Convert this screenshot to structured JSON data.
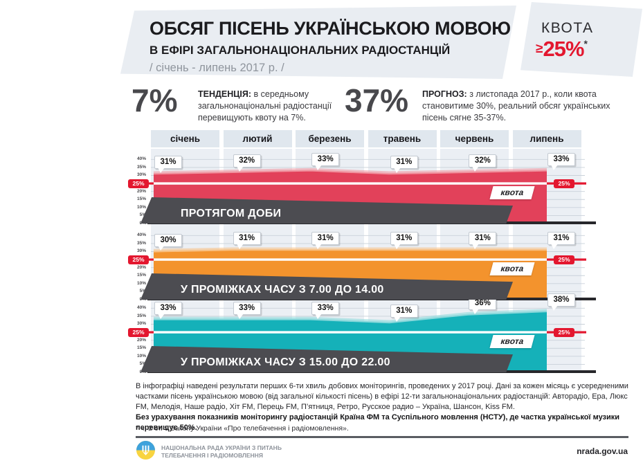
{
  "header": {
    "title": "ОБСЯГ ПІСЕНЬ УКРАЇНСЬКОЮ МОВОЮ",
    "subtitle": "В ЕФІРІ ЗАГАЛЬНОНАЦІОНАЛЬНИХ РАДІОСТАНЦІЙ",
    "period": "/ січень - липень 2017 р. /",
    "quota_label": "КВОТА",
    "quota_ge": "≥",
    "quota_value": "25%",
    "quota_asterisk": "*"
  },
  "stats": [
    {
      "value": "7%",
      "label": "ТЕНДЕНЦІЯ:",
      "text": "в середньому загальнонаціональні радіостанції перевищують квоту на 7%."
    },
    {
      "value": "37%",
      "label": "ПРОГНОЗ:",
      "text": "з листопада 2017 р., коли квота становитиме 30%, реальний обсяг українських пісень сягне 35-37%."
    }
  ],
  "chart_data": {
    "type": "area",
    "categories": [
      "січень",
      "лютий",
      "березень",
      "травень",
      "червень",
      "липень"
    ],
    "y_ticks": [
      "40%",
      "35%",
      "30%",
      "25%",
      "20%",
      "15%",
      "10%",
      "5%",
      "0%"
    ],
    "ylim": [
      0,
      41
    ],
    "grid": true,
    "quota_line": {
      "value": 25,
      "label": "квота",
      "badge": "25%",
      "color": "#e3172f"
    },
    "series": [
      {
        "name": "ПРОТЯГОМ ДОБИ",
        "values": [
          31,
          32,
          33,
          31,
          32,
          33
        ],
        "color": "#e2415a",
        "top_color": "#f0939f"
      },
      {
        "name": "У ПРОМІЖКАХ ЧАСУ З 7.00 ДО 14.00",
        "values": [
          30,
          31,
          31,
          31,
          31,
          31
        ],
        "color": "#f3932d",
        "top_color": "#f8c083"
      },
      {
        "name": "У ПРОМІЖКАХ ЧАСУ З 15.00 ДО 22.00",
        "values": [
          33,
          33,
          33,
          31,
          36,
          38
        ],
        "color": "#15b1b9",
        "top_color": "#8bd8db"
      }
    ]
  },
  "footer": {
    "note_regular": "В інфографіці наведені результати перших 6-ти хвиль добових моніторингів, проведених у 2017 році. Дані за кожен місяць є усередненими частками пісень українською мовою (від загальної кількості пісень) в ефірі 12-ти загальнонаціональних радіостанцій: Авторадіо, Ера, Люкс FM, Мелодія, Наше радіо, Хіт FM, Перець FM, П’ятниця, Ретро, Русское радио – Україна, Шансон, Kiss FM.",
    "note_bold": "Без урахування показників моніторингу радіостанцій Країна ФМ та Суспільного мовлення (НСТУ), де частка української музики перевищує 50%.",
    "footnote": "* ч. 2 ст. 9 Закону України «Про телебачення і радіомовлення».",
    "org_line1": "НАЦІОНАЛЬНА РАДА УКРАЇНИ З ПИТАНЬ",
    "org_line2": "ТЕЛЕБАЧЕННЯ І РАДІОМОВЛЕННЯ",
    "site": "nrada.gov.ua"
  },
  "colors": {
    "accent_red": "#e3172f",
    "panel_gray": "#e9edf2",
    "banner_dark": "#4c4c51",
    "flag_blue": "#3ea2dc",
    "flag_yellow": "#f8d440"
  }
}
